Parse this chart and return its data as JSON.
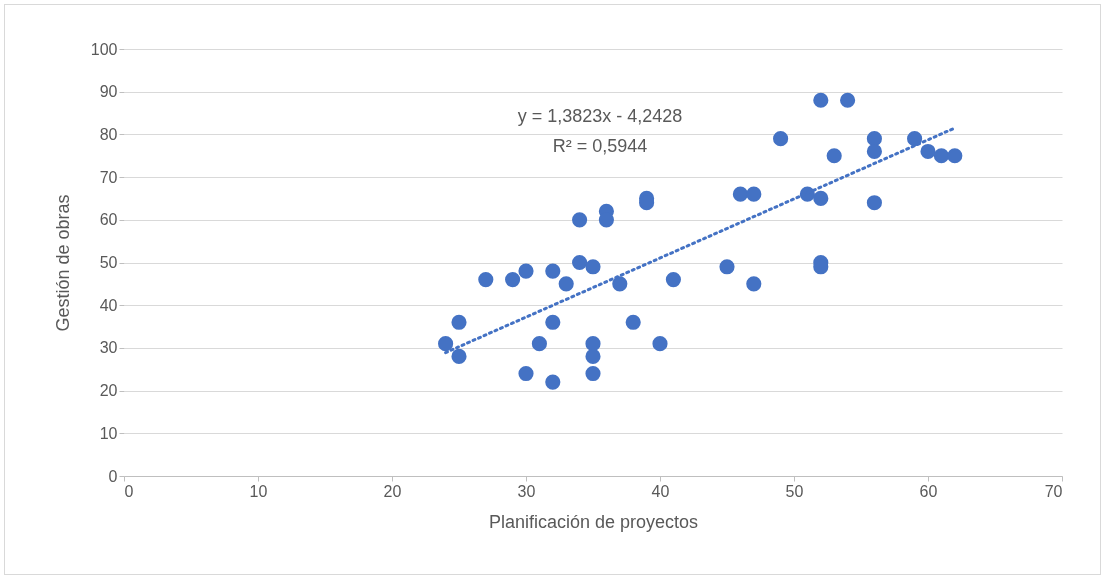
{
  "chart_data": {
    "type": "scatter",
    "xlabel": "Planificación de proyectos",
    "ylabel": "Gestión de obras",
    "xlim": [
      0,
      70
    ],
    "xticks": [
      0,
      10,
      20,
      30,
      40,
      50,
      60,
      70
    ],
    "ylim": [
      0,
      100
    ],
    "yticks": [
      0,
      10,
      20,
      30,
      40,
      50,
      60,
      70,
      80,
      90,
      100
    ],
    "grid": "y",
    "series": [
      {
        "marker": "circle",
        "color": "#4472c4",
        "x": [
          24,
          25,
          25,
          27,
          29,
          30,
          30,
          31,
          32,
          32,
          32,
          33,
          34,
          34,
          35,
          35,
          35,
          35,
          36,
          36,
          37,
          38,
          39,
          39,
          40,
          41,
          45,
          46,
          47,
          47,
          49,
          51,
          52,
          52,
          52,
          52,
          53,
          54,
          56,
          56,
          56,
          59,
          60,
          61,
          62
        ],
        "values": [
          31,
          36,
          28,
          46,
          46,
          48,
          24,
          31,
          48,
          36,
          22,
          45,
          60,
          50,
          49,
          31,
          28,
          24,
          62,
          60,
          45,
          36,
          65,
          64,
          31,
          46,
          49,
          66,
          66,
          45,
          79,
          66,
          88,
          65,
          50,
          49,
          75,
          88,
          79,
          76,
          64,
          79,
          76,
          75,
          75
        ]
      },
      {
        "type": "line",
        "line_style": "dotted",
        "color": "#4472c4",
        "x": [
          24,
          62
        ],
        "values": [
          28.9,
          81.5
        ]
      }
    ],
    "annotations": [
      "y = 1,3823x - 4,2428",
      "R² = 0,5944"
    ]
  }
}
